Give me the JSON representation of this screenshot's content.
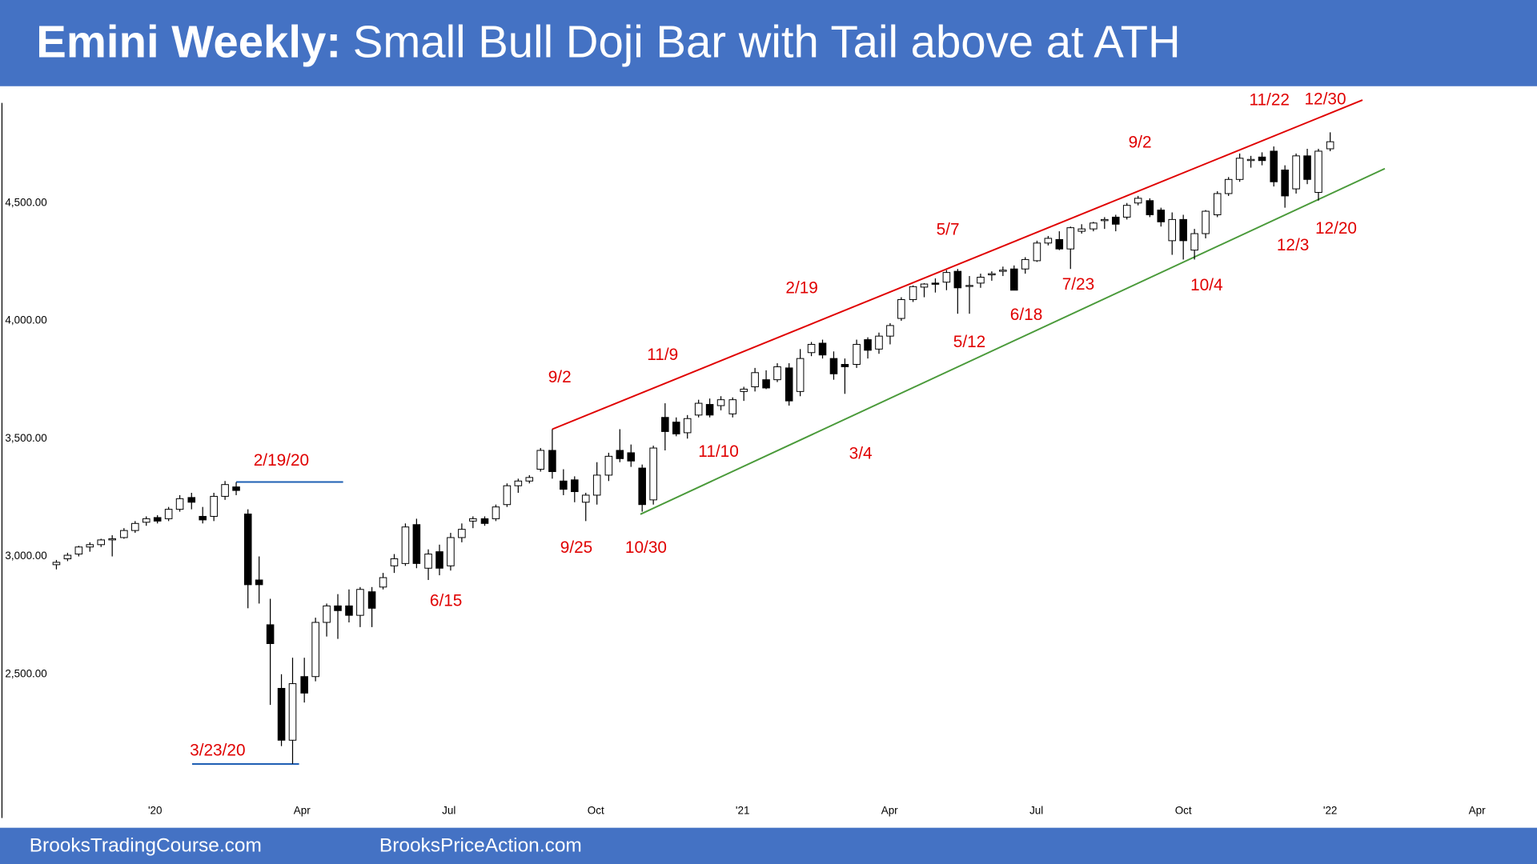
{
  "chart_data": {
    "type": "candlestick",
    "title_bold": "Emini Weekly:",
    "title": "Small Bull Doji Bar with Tail above at ATH",
    "footer": [
      "BrooksTradingCourse.com",
      "BrooksPriceAction.com"
    ],
    "up_color": "#ffffff",
    "down_color": "#000000",
    "xlim": [
      2019.736,
      2022.352
    ],
    "xticks": [
      {
        "value": 2020,
        "label": "'20"
      },
      {
        "value": 2020.25,
        "label": "Apr"
      },
      {
        "value": 2020.5,
        "label": "Jul"
      },
      {
        "value": 2020.75,
        "label": "Oct"
      },
      {
        "value": 2021,
        "label": "'21"
      },
      {
        "value": 2021.25,
        "label": "Apr"
      },
      {
        "value": 2021.5,
        "label": "Jul"
      },
      {
        "value": 2021.75,
        "label": "Oct"
      },
      {
        "value": 2022,
        "label": "'22"
      },
      {
        "value": 2022.25,
        "label": "Apr"
      }
    ],
    "ylim": [
      1890,
      4925
    ],
    "yticks": [
      {
        "value": 2500,
        "label": "2,500.00"
      },
      {
        "value": 3000,
        "label": "3,000.00"
      },
      {
        "value": 3500,
        "label": "3,500.00"
      },
      {
        "value": 4000,
        "label": "4,000.00"
      },
      {
        "value": 4500,
        "label": "4,500.00"
      }
    ],
    "x": [
      2019.832,
      2019.851,
      2019.87,
      2019.889,
      2019.908,
      2019.927,
      2019.947,
      2019.966,
      2019.985,
      2020.004,
      2020.023,
      2020.042,
      2020.062,
      2020.081,
      2020.1,
      2020.119,
      2020.138,
      2020.158,
      2020.177,
      2020.196,
      2020.215,
      2020.234,
      2020.254,
      2020.273,
      2020.292,
      2020.311,
      2020.33,
      2020.349,
      2020.369,
      2020.388,
      2020.407,
      2020.426,
      2020.445,
      2020.465,
      2020.484,
      2020.503,
      2020.522,
      2020.541,
      2020.561,
      2020.58,
      2020.599,
      2020.618,
      2020.637,
      2020.656,
      2020.676,
      2020.695,
      2020.714,
      2020.733,
      2020.752,
      2020.772,
      2020.791,
      2020.81,
      2020.829,
      2020.848,
      2020.868,
      2020.887,
      2020.906,
      2020.925,
      2020.944,
      2020.963,
      2020.983,
      2021.002,
      2021.021,
      2021.04,
      2021.059,
      2021.079,
      2021.098,
      2021.117,
      2021.136,
      2021.155,
      2021.174,
      2021.194,
      2021.213,
      2021.232,
      2021.251,
      2021.27,
      2021.29,
      2021.309,
      2021.328,
      2021.347,
      2021.366,
      2021.386,
      2021.405,
      2021.424,
      2021.443,
      2021.462,
      2021.481,
      2021.501,
      2021.52,
      2021.539,
      2021.558,
      2021.577,
      2021.597,
      2021.616,
      2021.635,
      2021.654,
      2021.673,
      2021.693,
      2021.712,
      2021.731,
      2021.75,
      2021.769,
      2021.788,
      2021.808,
      2021.827,
      2021.846,
      2021.865,
      2021.884,
      2021.904,
      2021.923,
      2021.942,
      2021.961,
      2021.98,
      2022.0
    ],
    "open": [
      2965,
      2990,
      3010,
      3040,
      3050,
      3070,
      3080,
      3110,
      3145,
      3165,
      3160,
      3200,
      3250,
      3170,
      3170,
      3255,
      3295,
      3180,
      2900,
      2710,
      2440,
      2220,
      2490,
      2490,
      2720,
      2790,
      2790,
      2750,
      2850,
      2870,
      2960,
      2970,
      3135,
      2950,
      3020,
      2960,
      3080,
      3150,
      3160,
      3160,
      3220,
      3300,
      3320,
      3370,
      3450,
      3320,
      3325,
      3230,
      3260,
      3345,
      3450,
      3440,
      3375,
      3240,
      3590,
      3570,
      3525,
      3600,
      3645,
      3640,
      3605,
      3700,
      3720,
      3750,
      3750,
      3800,
      3700,
      3865,
      3905,
      3840,
      3815,
      3815,
      3920,
      3880,
      3935,
      4010,
      4090,
      4143,
      4160,
      4164,
      4210,
      4150,
      4160,
      4195,
      4210,
      4220,
      4220,
      4255,
      4330,
      4345,
      4305,
      4380,
      4390,
      4425,
      4440,
      4440,
      4500,
      4510,
      4470,
      4340,
      4430,
      4300,
      4370,
      4450,
      4540,
      4600,
      4680,
      4695,
      4720,
      4640,
      4560,
      4700,
      4545,
      4730
    ],
    "high": [
      2985,
      3015,
      3045,
      3060,
      3075,
      3090,
      3120,
      3150,
      3170,
      3175,
      3210,
      3260,
      3270,
      3210,
      3270,
      3320,
      3315,
      3200,
      3000,
      2820,
      2500,
      2570,
      2570,
      2740,
      2800,
      2840,
      2860,
      2870,
      2870,
      2930,
      3010,
      3140,
      3160,
      3030,
      3050,
      3100,
      3140,
      3170,
      3170,
      3220,
      3310,
      3330,
      3345,
      3460,
      3540,
      3370,
      3340,
      3270,
      3400,
      3440,
      3540,
      3475,
      3390,
      3470,
      3650,
      3590,
      3600,
      3665,
      3670,
      3680,
      3675,
      3720,
      3800,
      3790,
      3820,
      3820,
      3880,
      3910,
      3920,
      3870,
      3840,
      3920,
      3930,
      3950,
      3990,
      4100,
      4150,
      4160,
      4180,
      4215,
      4220,
      4190,
      4200,
      4210,
      4230,
      4235,
      4270,
      4340,
      4360,
      4380,
      4400,
      4410,
      4420,
      4440,
      4450,
      4500,
      4530,
      4520,
      4480,
      4460,
      4450,
      4390,
      4470,
      4550,
      4610,
      4710,
      4700,
      4715,
      4740,
      4660,
      4710,
      4730,
      4730,
      4800
    ],
    "low": [
      2945,
      2980,
      3000,
      3020,
      3040,
      3000,
      3075,
      3100,
      3130,
      3140,
      3150,
      3190,
      3200,
      3140,
      3150,
      3240,
      3260,
      2780,
      2800,
      2370,
      2195,
      2120,
      2380,
      2470,
      2660,
      2650,
      2720,
      2700,
      2700,
      2860,
      2930,
      2960,
      2950,
      2900,
      2920,
      2940,
      3060,
      3120,
      3130,
      3150,
      3210,
      3270,
      3310,
      3360,
      3330,
      3260,
      3230,
      3150,
      3220,
      3320,
      3400,
      3380,
      3190,
      3220,
      3450,
      3510,
      3500,
      3590,
      3590,
      3620,
      3590,
      3660,
      3700,
      3710,
      3740,
      3640,
      3680,
      3850,
      3840,
      3750,
      3690,
      3800,
      3840,
      3860,
      3900,
      4000,
      4080,
      4100,
      4120,
      4130,
      4030,
      4030,
      4140,
      4170,
      4190,
      4130,
      4200,
      4250,
      4320,
      4300,
      4220,
      4370,
      4380,
      4390,
      4380,
      4430,
      4490,
      4440,
      4400,
      4280,
      4260,
      4260,
      4350,
      4440,
      4530,
      4590,
      4650,
      4660,
      4570,
      4480,
      4540,
      4580,
      4510,
      4720
    ],
    "close": [
      2975,
      3005,
      3040,
      3050,
      3070,
      3075,
      3110,
      3140,
      3160,
      3150,
      3200,
      3245,
      3230,
      3155,
      3255,
      3305,
      3280,
      2880,
      2880,
      2630,
      2220,
      2460,
      2420,
      2720,
      2790,
      2770,
      2750,
      2860,
      2780,
      2910,
      2990,
      3125,
      2970,
      3010,
      2950,
      3080,
      3115,
      3160,
      3140,
      3210,
      3300,
      3320,
      3335,
      3450,
      3360,
      3285,
      3275,
      3260,
      3345,
      3425,
      3415,
      3405,
      3220,
      3460,
      3530,
      3520,
      3585,
      3650,
      3600,
      3665,
      3665,
      3710,
      3780,
      3715,
      3805,
      3660,
      3840,
      3900,
      3855,
      3775,
      3805,
      3900,
      3875,
      3935,
      3980,
      4090,
      4145,
      4156,
      4155,
      4205,
      4140,
      4150,
      4185,
      4200,
      4215,
      4130,
      4260,
      4330,
      4350,
      4305,
      4395,
      4390,
      4415,
      4430,
      4410,
      4490,
      4520,
      4450,
      4420,
      4430,
      4340,
      4370,
      4465,
      4540,
      4600,
      4690,
      4685,
      4680,
      4590,
      4530,
      4700,
      4600,
      4720,
      4760
    ],
    "trendlines": [
      {
        "color": "#e00000",
        "x": [
          2020.676,
          2022.055
        ],
        "values": [
          3540,
          4937
        ]
      },
      {
        "color": "#4a9a3a",
        "x": [
          2020.826,
          2022.093
        ],
        "values": [
          3179,
          4646
        ]
      },
      {
        "color": "#1f5fb4",
        "x": [
          2020.138,
          2020.32
        ],
        "values": [
          3316,
          3316
        ]
      },
      {
        "color": "#1f5fb4",
        "x": [
          2020.063,
          2020.245
        ],
        "values": [
          2119,
          2119
        ]
      }
    ],
    "annotations": [
      "2/19/20",
      "3/23/20",
      "6/15",
      "9/2",
      "9/25",
      "10/30",
      "11/9",
      "11/10",
      "2/19",
      "3/4",
      "5/7",
      "5/12",
      "6/18",
      "7/23",
      "9/2",
      "10/4",
      "11/22",
      "12/30",
      "12/3",
      "12/20"
    ]
  }
}
